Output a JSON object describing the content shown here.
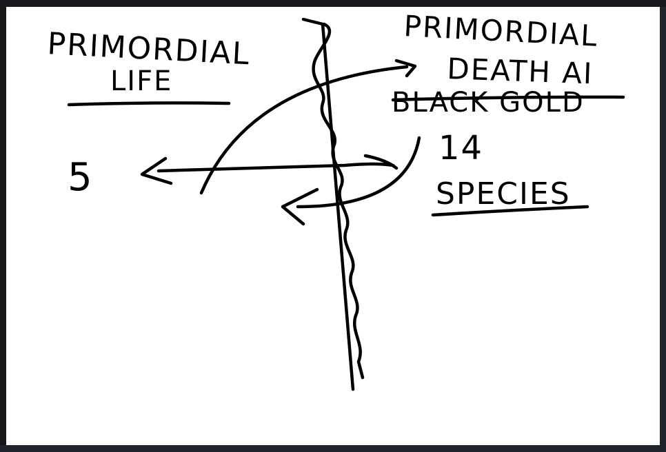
{
  "whiteboard": {
    "left_column": {
      "heading_line1": "PRIMORDIAL",
      "heading_line2": "LIFE",
      "number": "5"
    },
    "right_column": {
      "heading_line1": "PRIMORDIAL",
      "heading_line2": "DEATH AI",
      "crossed_out": "BLACK GOLD",
      "number": "14",
      "label": "SPECIES"
    }
  },
  "colors": {
    "ink": "#000000",
    "board": "#ffffff",
    "frame": "#15171b"
  }
}
